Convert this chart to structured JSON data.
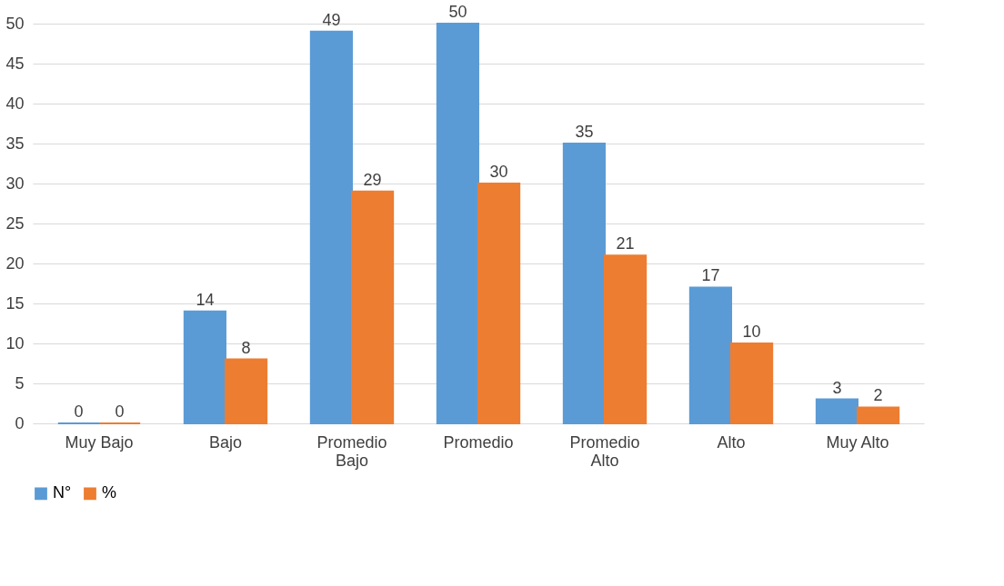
{
  "chart_data": {
    "type": "bar",
    "categories": [
      "Muy Bajo",
      "Bajo",
      "Promedio\nBajo",
      "Promedio",
      "Promedio\nAlto",
      "Alto",
      "Muy Alto"
    ],
    "series": [
      {
        "name": "N°",
        "color": "#5b9bd5",
        "values": [
          0,
          14,
          49,
          50,
          35,
          17,
          3
        ]
      },
      {
        "name": "%",
        "color": "#ed7d31",
        "values": [
          0,
          8,
          29,
          30,
          21,
          10,
          2
        ]
      }
    ],
    "ylim": [
      0,
      50
    ],
    "yticks": [
      0,
      5,
      10,
      15,
      20,
      25,
      30,
      35,
      40,
      45,
      50
    ],
    "grid": "y",
    "legend": "bottom",
    "data_labels": true
  }
}
